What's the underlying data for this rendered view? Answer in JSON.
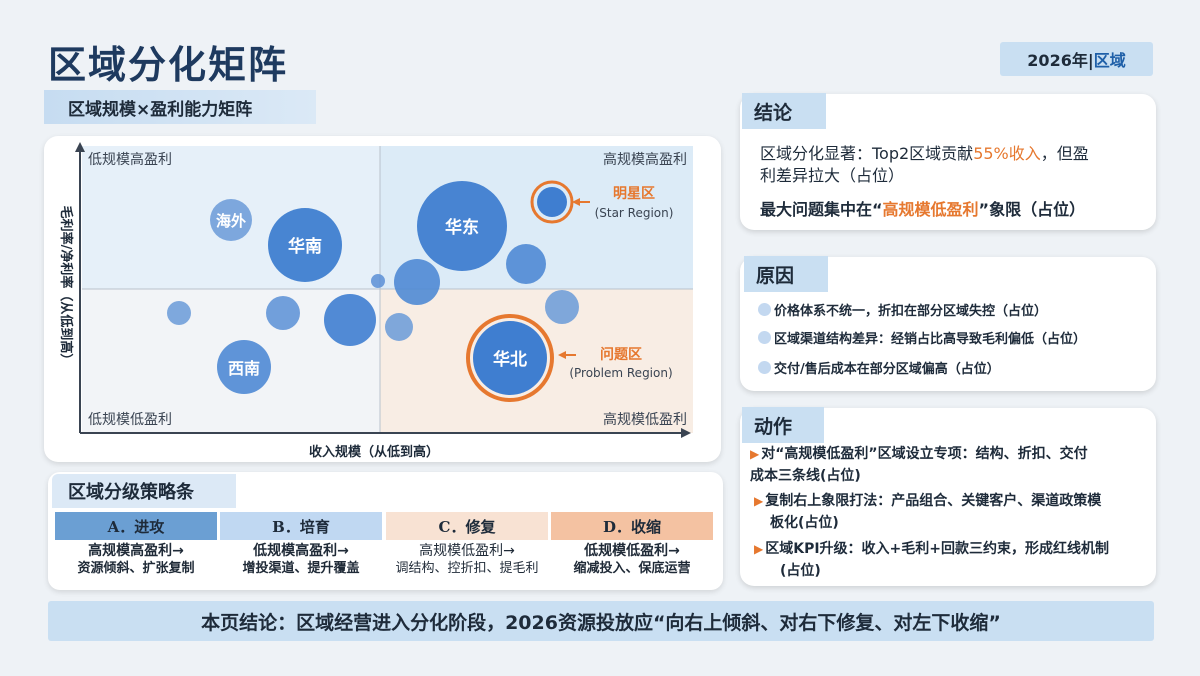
{
  "page": {
    "title": "区域分化矩阵",
    "year_tag": {
      "year": "2026年|",
      "scope": "区域"
    }
  },
  "matrix": {
    "tab_title": "区域规模×盈利能力矩阵",
    "y_axis_label": "毛利率/净利率（从低到高）",
    "x_axis_label": "收入规模（从低到高）",
    "quadrants": {
      "top_left": "低规模高盈利",
      "top_right": "高规模高盈利",
      "bottom_left": "低规模低盈利",
      "bottom_right": "高规模低盈利"
    },
    "callouts": {
      "star": {
        "label": "明星区",
        "sub": "(Star Region)"
      },
      "problem": {
        "label": "问题区",
        "sub": "(Problem Region)"
      }
    },
    "bubble_labels": {
      "haiwai": "海外",
      "huanan": "华南",
      "huadong": "华东",
      "huabei": "华北",
      "xinan": "西南"
    },
    "colors": {
      "top_left_bg": "#e6f0f9",
      "top_right_bg": "#dcebf7",
      "bottom_left_bg": "#f2f4f7",
      "bottom_right_bg": "#f8ede4",
      "bubble": "#3f7ed0",
      "highlight": "#e6782f"
    }
  },
  "strategy": {
    "tab_title": "区域分级策略条",
    "columns": [
      {
        "head": "A．进攻",
        "line1": "高规模高盈利→",
        "line2": "资源倾斜、扩张复制",
        "bg": "#6b9fd3"
      },
      {
        "head": "B．培育",
        "line1": "低规模高盈利→",
        "line2": "增投渠道、提升覆盖",
        "bg": "#c0d8f2"
      },
      {
        "head": "C．修复",
        "line1": "高规模低盈利→",
        "line2": "调结构、控折扣、提毛利",
        "bg": "#f8e2d3"
      },
      {
        "head": "D．收缩",
        "line1": "低规模低盈利→",
        "line2": "缩减投入、保底运营",
        "bg": "#f4c2a2"
      }
    ]
  },
  "conclusion": {
    "tab": "结论",
    "line_a_pre": "区域分化显著：Top2区域贡献",
    "line_a_highlight": "55%收入",
    "line_a_post": "，但盈",
    "line_b": "利差异拉大（占位）",
    "line_c_pre": "最大问题集中在“",
    "line_c_highlight": "高规模低盈利",
    "line_c_post": "”象限（占位）"
  },
  "reasons": {
    "tab": "原因",
    "items": [
      "价格体系不统一，折扣在部分区域失控（占位）",
      "区域渠道结构差异：经销占比高导致毛利偏低（占位）",
      "交付/售后成本在部分区域偏高（占位）"
    ]
  },
  "actions": {
    "tab": "动作",
    "items": [
      {
        "line1": "对“高规模低盈利”区域设立专项：结构、折扣、交付",
        "line2": "成本三条线(占位)"
      },
      {
        "line1": "复制右上象限打法：产品组合、关键客户、渠道政策模",
        "line2": "板化(占位)"
      },
      {
        "line1": "区域KPI升级：收入+毛利+回款三约束，形成红线机制",
        "line2": "(占位)"
      }
    ]
  },
  "bottom_conclusion": "本页结论：区域经营进入分化阶段，2026资源投放应“向右上倾斜、对右下修复、对左下收缩”"
}
